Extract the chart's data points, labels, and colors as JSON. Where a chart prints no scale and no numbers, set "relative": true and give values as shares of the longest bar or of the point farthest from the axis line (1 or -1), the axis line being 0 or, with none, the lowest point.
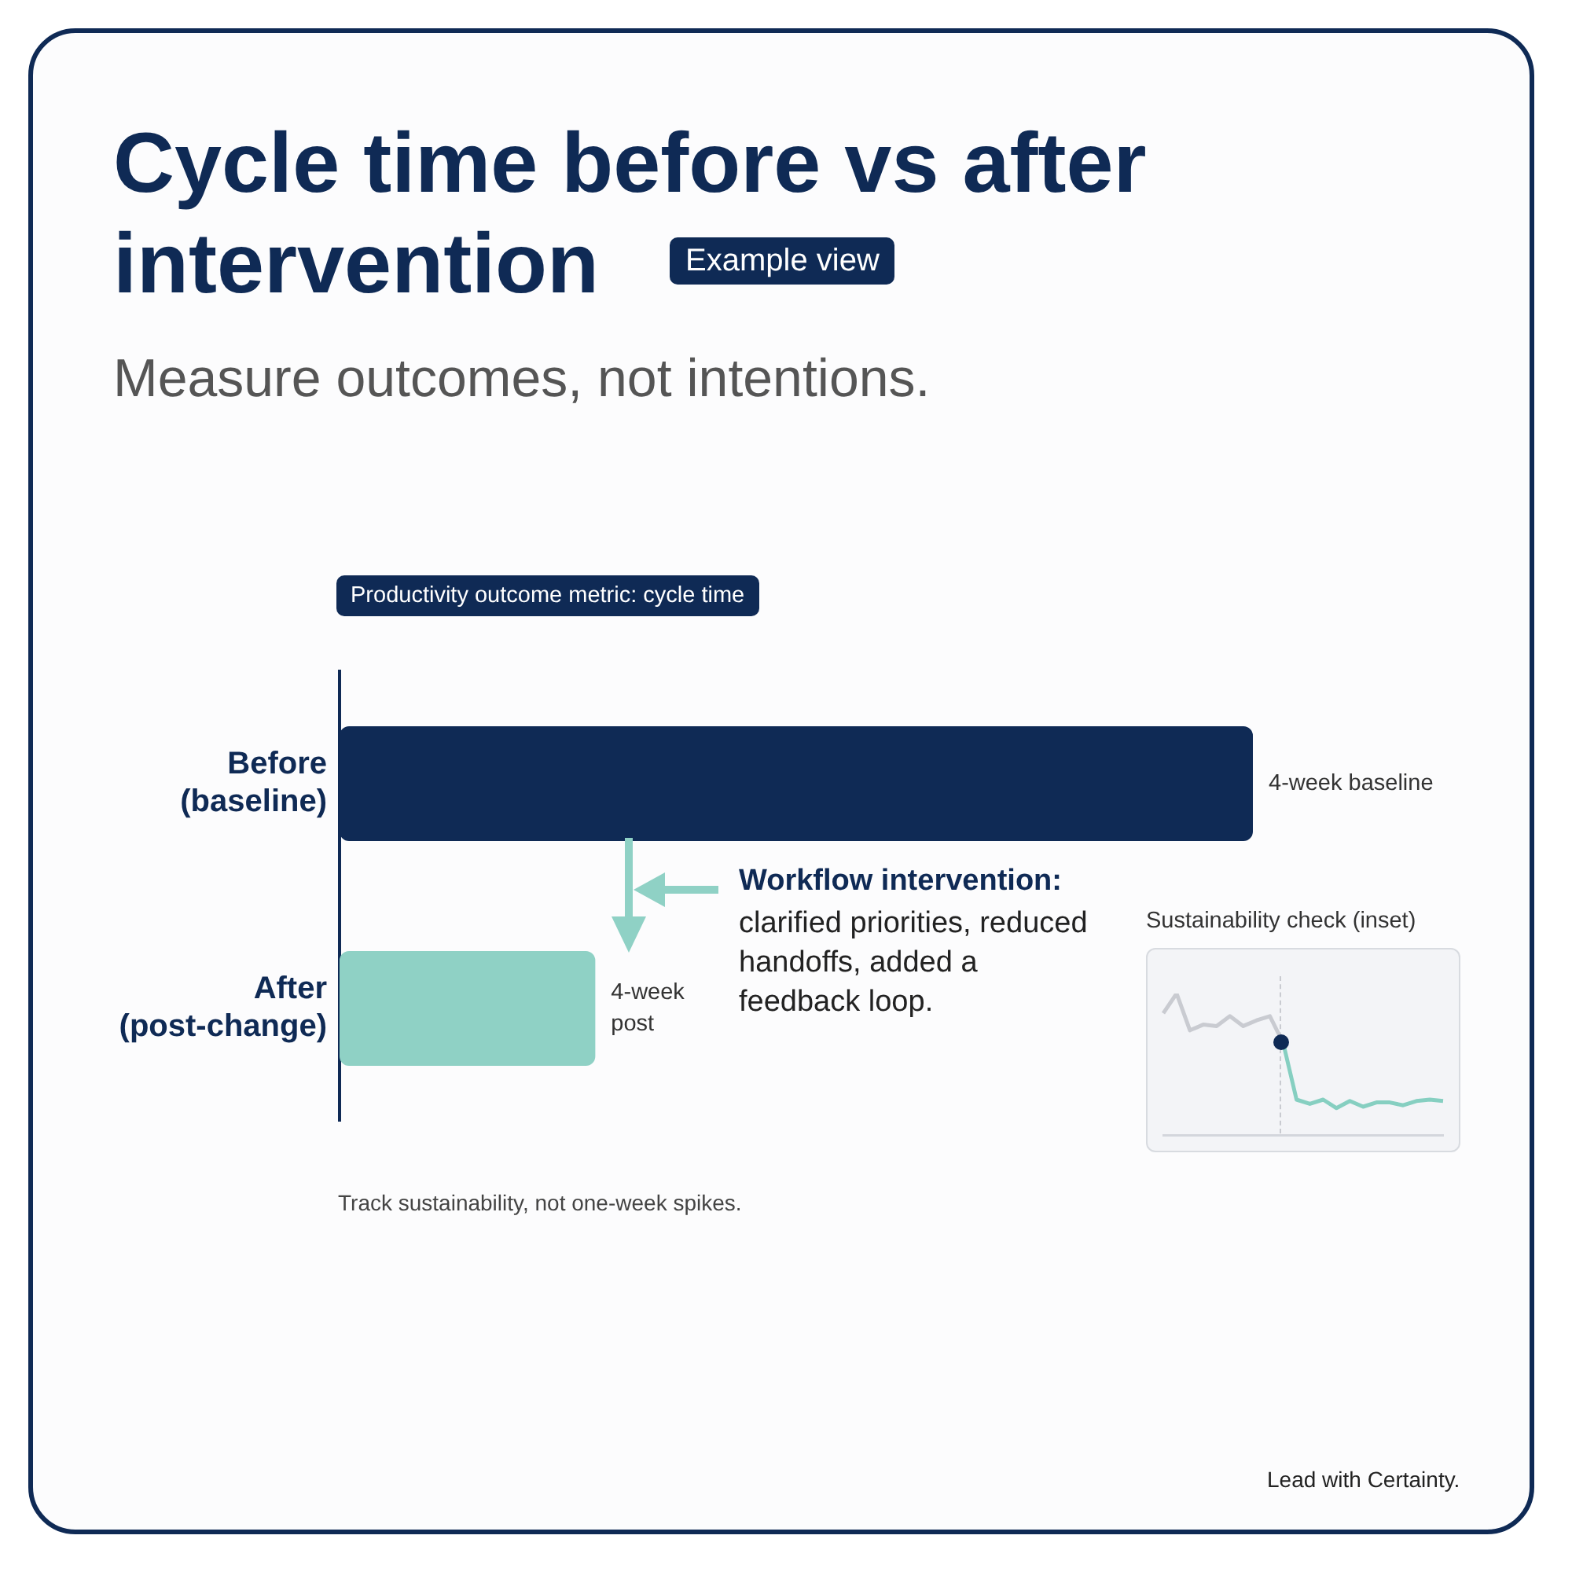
{
  "chart_data": [
    {
      "type": "bar",
      "orientation": "horizontal",
      "relative": true,
      "title": "Cycle time before vs after intervention",
      "subtitle": "Measure outcomes, not intentions.",
      "categories": [
        "Before\n(baseline)",
        "After\n(post-change)"
      ],
      "values": [
        1,
        0.28
      ],
      "colors": [
        "#0f2a55",
        "#8fd1c5"
      ],
      "annotations": [
        "Productivity outcome metric: cycle time",
        "Example view",
        "Workflow intervention:",
        "clarified priorities, reduced handoffs, added a feedback loop.",
        "Track sustainability, not one-week spikes.",
        "Lead with Certainty.",
        "4-week baseline",
        "4-week\npost"
      ]
    },
    {
      "type": "line",
      "relative": true,
      "title": "Sustainability check (inset)",
      "categories": [
        null,
        null,
        null,
        null,
        null,
        null,
        null,
        null,
        null,
        null,
        null,
        null,
        null,
        null,
        null,
        null,
        null,
        null,
        null,
        null,
        null,
        null
      ],
      "series": [
        {
          "color": "#c9cbd1",
          "values": [
            0.86,
            1,
            0.74,
            0.78,
            0.77,
            0.84,
            0.77,
            0.81,
            0.84,
            0.65,
            null,
            null,
            null,
            null,
            null,
            null,
            null,
            null,
            null,
            null,
            null,
            null
          ]
        },
        {
          "color": "#86cfc1",
          "values": [
            null,
            null,
            null,
            null,
            null,
            null,
            null,
            null,
            null,
            0.65,
            0.25,
            0.22,
            0.25,
            0.19,
            0.24,
            0.2,
            0.23,
            0.23,
            0.21,
            0.24,
            0.25,
            0.24
          ]
        }
      ]
    }
  ]
}
